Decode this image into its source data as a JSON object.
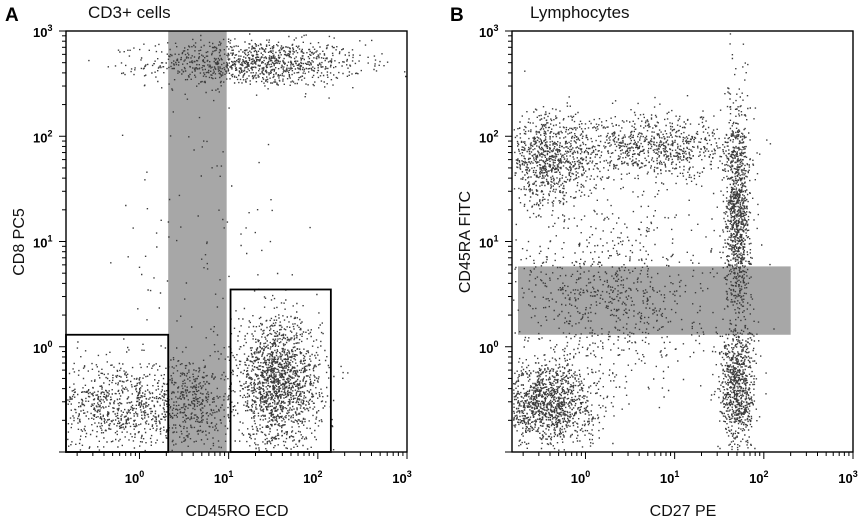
{
  "chart_data": [
    {
      "type": "scatter",
      "panel_label": "A",
      "title": "CD3+ cells",
      "xlabel": "CD45RO ECD",
      "ylabel": "CD8 PC5",
      "scale": "log",
      "xlim": [
        0.15,
        1000
      ],
      "ylim": [
        0.1,
        1000
      ],
      "ticks": [
        {
          "base": "10",
          "exp": "0",
          "value": 1
        },
        {
          "base": "10",
          "exp": "1",
          "value": 10
        },
        {
          "base": "10",
          "exp": "2",
          "value": 100
        },
        {
          "base": "10",
          "exp": "3",
          "value": 1000
        }
      ],
      "grid": false,
      "shaded_region": {
        "orientation": "vertical",
        "x_range": [
          2.1,
          9.5
        ]
      },
      "gates": [
        {
          "x": [
            0.15,
            2.1
          ],
          "y": [
            0.1,
            1.3
          ]
        },
        {
          "x": [
            10.5,
            140
          ],
          "y": [
            0.1,
            3.5
          ]
        }
      ],
      "clusters": [
        {
          "cx": 20,
          "cy": 500,
          "sx": 0.6,
          "sy": 0.11,
          "n": 1100
        },
        {
          "cx": 0.6,
          "cy": 0.28,
          "sx": 0.42,
          "sy": 0.22,
          "n": 900
        },
        {
          "cx": 4,
          "cy": 0.3,
          "sx": 0.2,
          "sy": 0.22,
          "n": 350
        },
        {
          "cx": 35,
          "cy": 0.45,
          "sx": 0.24,
          "sy": 0.3,
          "n": 1700
        },
        {
          "cx": 5,
          "cy": 5,
          "sx": 0.5,
          "sy": 0.9,
          "n": 110
        }
      ]
    },
    {
      "type": "scatter",
      "panel_label": "B",
      "title": "Lymphocytes",
      "xlabel": "CD27 PE",
      "ylabel": "CD45RA FITC",
      "scale": "log",
      "xlim": [
        0.15,
        1000
      ],
      "ylim": [
        0.1,
        1000
      ],
      "ticks": [
        {
          "base": "10",
          "exp": "0",
          "value": 1
        },
        {
          "base": "10",
          "exp": "1",
          "value": 10
        },
        {
          "base": "10",
          "exp": "2",
          "value": 100
        },
        {
          "base": "10",
          "exp": "3",
          "value": 1000
        }
      ],
      "grid": false,
      "shaded_region": {
        "orientation": "horizontal",
        "x_range": [
          0.15,
          200
        ],
        "y_range": [
          1.3,
          5.8
        ]
      },
      "gates": [],
      "clusters": [
        {
          "cx": 0.35,
          "cy": 0.3,
          "sx": 0.28,
          "sy": 0.2,
          "n": 1300
        },
        {
          "cx": 50,
          "cy": 0.4,
          "sx": 0.1,
          "sy": 0.3,
          "n": 800
        },
        {
          "cx": 50,
          "cy": 20,
          "sx": 0.07,
          "sy": 0.5,
          "n": 1100
        },
        {
          "cx": 0.4,
          "cy": 60,
          "sx": 0.25,
          "sy": 0.22,
          "n": 900
        },
        {
          "cx": 6,
          "cy": 80,
          "sx": 0.45,
          "sy": 0.15,
          "n": 800
        },
        {
          "cx": 2,
          "cy": 3,
          "sx": 0.6,
          "sy": 0.45,
          "n": 900
        }
      ]
    }
  ]
}
